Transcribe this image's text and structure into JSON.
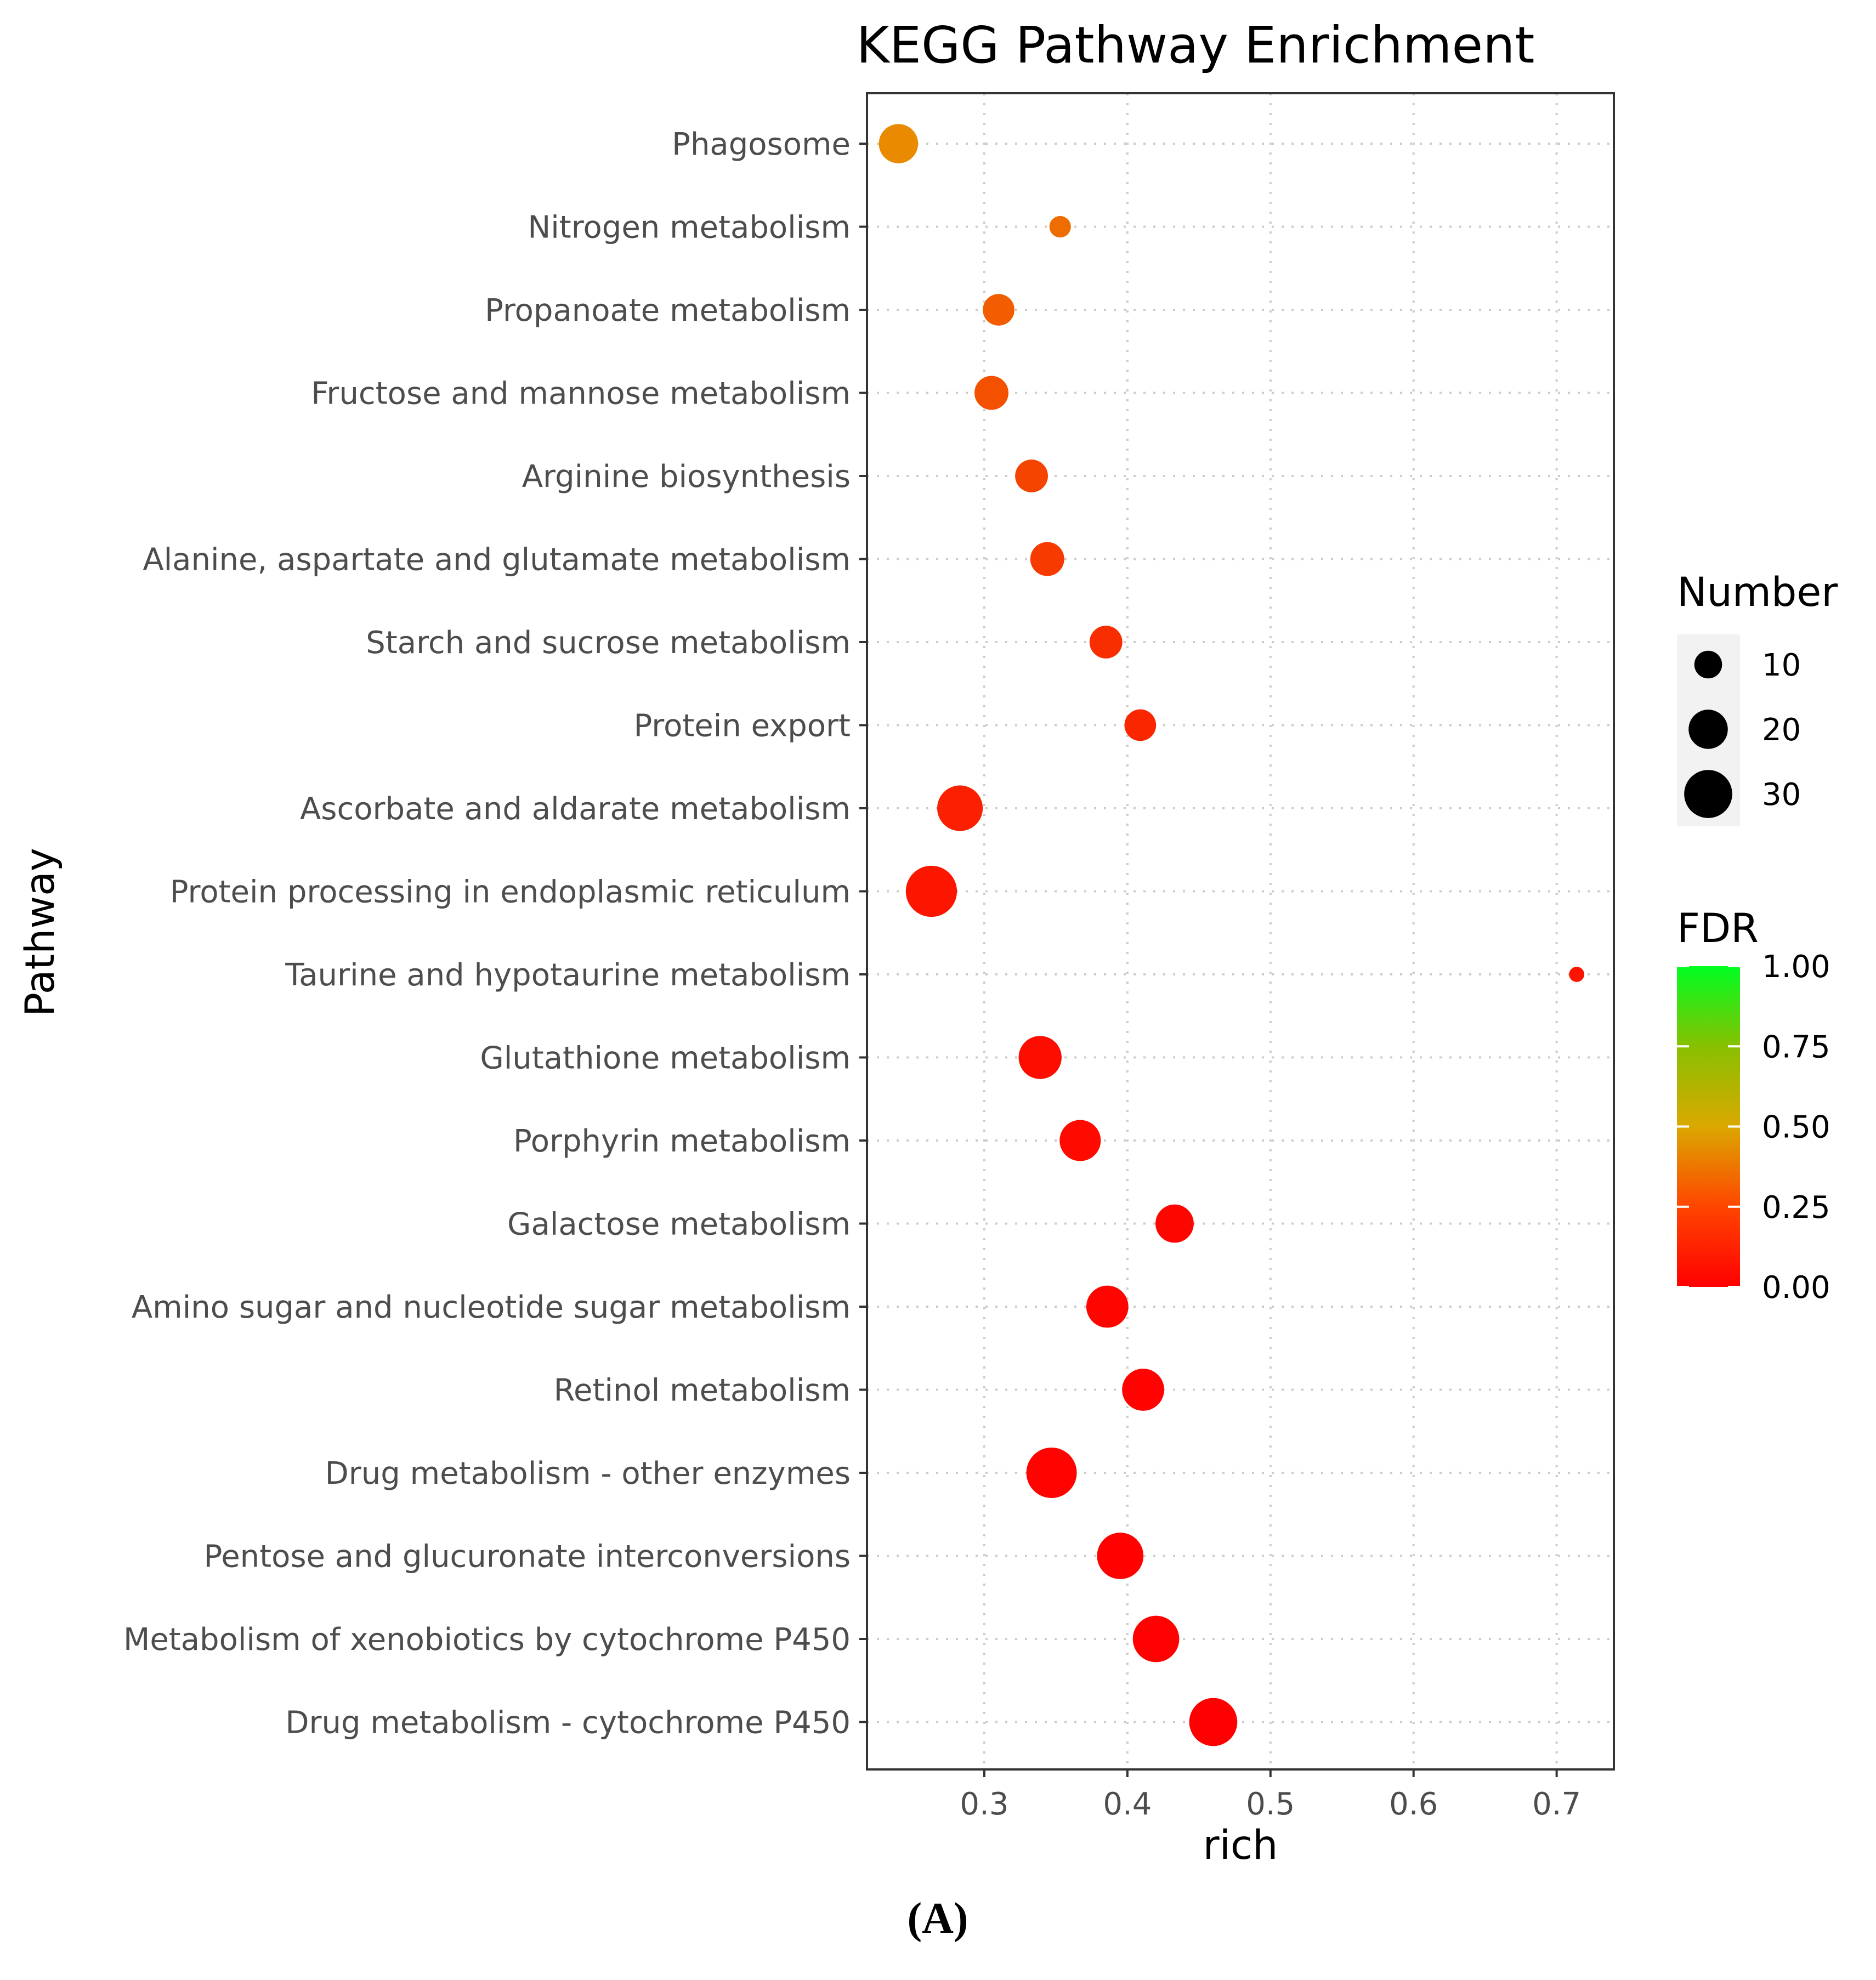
{
  "chart_data": {
    "type": "scatter",
    "title": "KEGG Pathway Enrichment",
    "xlabel": "rich",
    "ylabel": "Pathway",
    "xlim": [
      0.218,
      0.74
    ],
    "xticks": [
      "0.3",
      "0.4",
      "0.5",
      "0.6",
      "0.7"
    ],
    "grid": true,
    "points": [
      {
        "pathway": "Phagosome",
        "rich": 0.24,
        "number": 20,
        "fdr": 0.43
      },
      {
        "pathway": "Nitrogen metabolism",
        "rich": 0.353,
        "number": 6,
        "fdr": 0.34
      },
      {
        "pathway": "Propanoate metabolism",
        "rich": 0.31,
        "number": 13,
        "fdr": 0.29
      },
      {
        "pathway": "Fructose and mannose metabolism",
        "rich": 0.305,
        "number": 15,
        "fdr": 0.25
      },
      {
        "pathway": "Arginine biosynthesis",
        "rich": 0.333,
        "number": 14,
        "fdr": 0.21
      },
      {
        "pathway": "Alanine, aspartate and glutamate metabolism",
        "rich": 0.344,
        "number": 15,
        "fdr": 0.18
      },
      {
        "pathway": "Starch and sucrose metabolism",
        "rich": 0.385,
        "number": 14,
        "fdr": 0.14
      },
      {
        "pathway": "Protein export",
        "rich": 0.409,
        "number": 13,
        "fdr": 0.12
      },
      {
        "pathway": "Ascorbate and aldarate metabolism",
        "rich": 0.283,
        "number": 27,
        "fdr": 0.1
      },
      {
        "pathway": "Protein processing in endoplasmic reticulum",
        "rich": 0.263,
        "number": 34,
        "fdr": 0.07
      },
      {
        "pathway": "Taurine and hypotaurine metabolism",
        "rich": 0.714,
        "number": 3,
        "fdr": 0.06
      },
      {
        "pathway": "Glutathione metabolism",
        "rich": 0.339,
        "number": 24,
        "fdr": 0.04
      },
      {
        "pathway": "Porphyrin metabolism",
        "rich": 0.367,
        "number": 22,
        "fdr": 0.03
      },
      {
        "pathway": "Galactose metabolism",
        "rich": 0.433,
        "number": 19,
        "fdr": 0.02
      },
      {
        "pathway": "Amino sugar and nucleotide sugar metabolism",
        "rich": 0.386,
        "number": 23,
        "fdr": 0.015
      },
      {
        "pathway": "Retinol metabolism",
        "rich": 0.411,
        "number": 23,
        "fdr": 0.01
      },
      {
        "pathway": "Drug metabolism - other enzymes",
        "rich": 0.347,
        "number": 33,
        "fdr": 0.008
      },
      {
        "pathway": "Pentose and glucuronate interconversions",
        "rich": 0.395,
        "number": 28,
        "fdr": 0.005
      },
      {
        "pathway": "Metabolism of xenobiotics by cytochrome P450",
        "rich": 0.42,
        "number": 28,
        "fdr": 0.003
      },
      {
        "pathway": "Drug metabolism - cytochrome P450",
        "rich": 0.46,
        "number": 30,
        "fdr": 0.001
      }
    ],
    "legend_number": {
      "title": "Number",
      "values": [
        10,
        20,
        30
      ],
      "labels": [
        "10",
        "20",
        "30"
      ]
    },
    "legend_fdr": {
      "title": "FDR",
      "values": [
        1.0,
        0.75,
        0.5,
        0.25,
        0.0
      ],
      "labels": [
        "1.00",
        "0.75",
        "0.50",
        "0.25",
        "0.00"
      ]
    },
    "colors": {
      "low": "#ff0000",
      "mid": "#e6a000",
      "high": "#00ff22"
    },
    "caption": "(A)"
  }
}
